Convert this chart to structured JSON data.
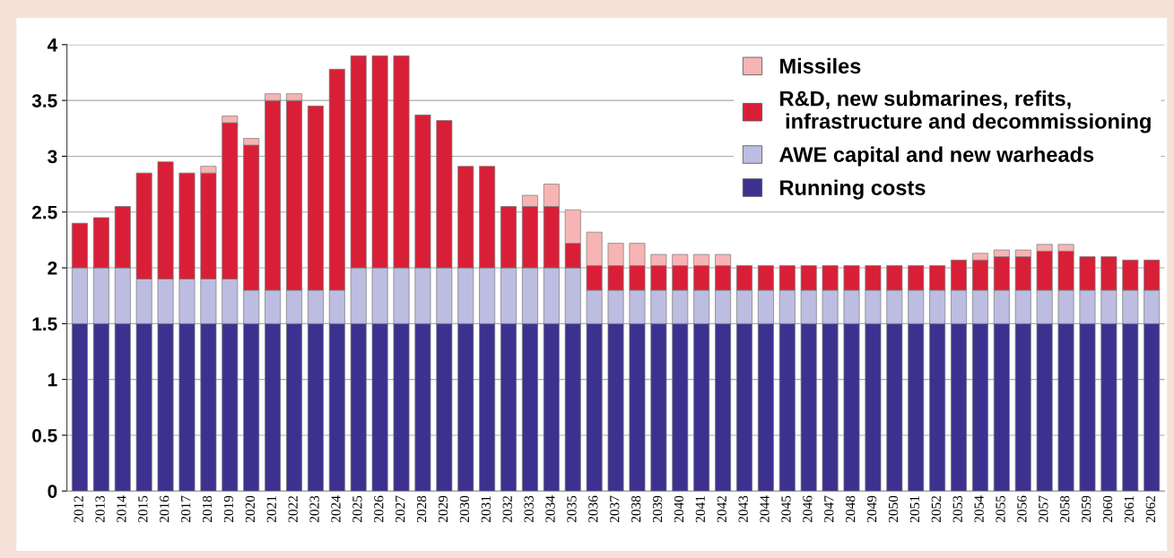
{
  "chart_data": {
    "type": "bar",
    "stacked": true,
    "categories": [
      "2012",
      "2013",
      "2014",
      "2015",
      "2016",
      "2017",
      "2018",
      "2019",
      "2020",
      "2021",
      "2022",
      "2023",
      "2024",
      "2025",
      "2026",
      "2027",
      "2028",
      "2029",
      "2030",
      "2031",
      "2032",
      "2033",
      "2034",
      "2035",
      "2036",
      "2037",
      "2038",
      "2039",
      "2040",
      "2041",
      "2042",
      "2043",
      "2044",
      "2045",
      "2046",
      "2047",
      "2048",
      "2049",
      "2050",
      "2051",
      "2052",
      "2053",
      "2054",
      "2055",
      "2056",
      "2057",
      "2058",
      "2059",
      "2060",
      "2061",
      "2062"
    ],
    "series": [
      {
        "name": "Running costs",
        "color": "#3d3190",
        "values": [
          1.5,
          1.5,
          1.5,
          1.5,
          1.5,
          1.5,
          1.5,
          1.5,
          1.5,
          1.5,
          1.5,
          1.5,
          1.5,
          1.5,
          1.5,
          1.5,
          1.5,
          1.5,
          1.5,
          1.5,
          1.5,
          1.5,
          1.5,
          1.5,
          1.5,
          1.5,
          1.5,
          1.5,
          1.5,
          1.5,
          1.5,
          1.5,
          1.5,
          1.5,
          1.5,
          1.5,
          1.5,
          1.5,
          1.5,
          1.5,
          1.5,
          1.5,
          1.5,
          1.5,
          1.5,
          1.5,
          1.5,
          1.5,
          1.5,
          1.5,
          1.5
        ]
      },
      {
        "name": "AWE capital and new warheads",
        "color": "#bcbde0",
        "values": [
          0.5,
          0.5,
          0.5,
          0.4,
          0.4,
          0.4,
          0.4,
          0.4,
          0.3,
          0.3,
          0.3,
          0.3,
          0.3,
          0.5,
          0.5,
          0.5,
          0.5,
          0.5,
          0.5,
          0.5,
          0.5,
          0.5,
          0.5,
          0.5,
          0.3,
          0.3,
          0.3,
          0.3,
          0.3,
          0.3,
          0.3,
          0.3,
          0.3,
          0.3,
          0.3,
          0.3,
          0.3,
          0.3,
          0.3,
          0.3,
          0.3,
          0.3,
          0.3,
          0.3,
          0.3,
          0.3,
          0.3,
          0.3,
          0.3,
          0.3,
          0.3
        ]
      },
      {
        "name": "R&D, new submarines, refits,\n infrastructure and decommissioning",
        "color": "#d91f37",
        "values": [
          0.4,
          0.45,
          0.55,
          0.95,
          1.05,
          0.95,
          0.95,
          1.4,
          1.3,
          1.7,
          1.7,
          1.65,
          1.98,
          1.9,
          1.9,
          1.9,
          1.37,
          1.32,
          0.91,
          0.91,
          0.55,
          0.55,
          0.55,
          0.22,
          0.22,
          0.22,
          0.22,
          0.22,
          0.22,
          0.22,
          0.22,
          0.22,
          0.22,
          0.22,
          0.22,
          0.22,
          0.22,
          0.22,
          0.22,
          0.22,
          0.22,
          0.27,
          0.27,
          0.3,
          0.3,
          0.35,
          0.35,
          0.3,
          0.3,
          0.27,
          0.27
        ]
      },
      {
        "name": "Missiles",
        "color": "#f7b4b4",
        "values": [
          null,
          null,
          null,
          null,
          null,
          null,
          0.06,
          0.06,
          0.06,
          0.06,
          0.06,
          null,
          null,
          null,
          null,
          null,
          null,
          null,
          null,
          null,
          null,
          0.1,
          0.2,
          0.3,
          0.3,
          0.2,
          0.2,
          0.1,
          0.1,
          0.1,
          0.1,
          null,
          null,
          null,
          null,
          null,
          null,
          null,
          null,
          null,
          null,
          null,
          0.06,
          0.06,
          0.06,
          0.06,
          0.06,
          null,
          null,
          null,
          null
        ]
      }
    ],
    "ylim": [
      0,
      4
    ],
    "yticks": [
      0,
      0.5,
      1,
      1.5,
      2,
      2.5,
      3,
      3.5,
      4
    ],
    "grid": "y",
    "legend": "top right"
  }
}
